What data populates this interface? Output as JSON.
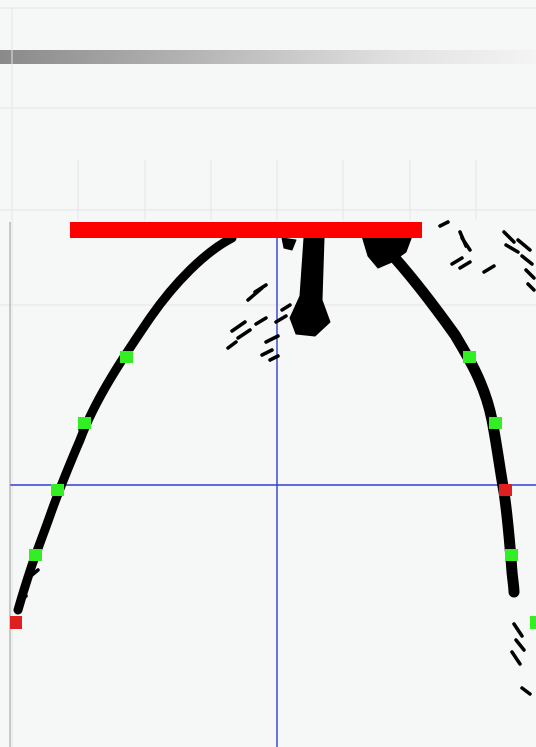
{
  "title": "",
  "colors": {
    "background": "#f6f7f7",
    "gridline": "#e6e6e6",
    "crosshair": "#2f3fd0",
    "edge_pixels": "#000000",
    "plate": "#ff0000",
    "marker_ok": "#33ee22",
    "marker_bad": "#e02020"
  },
  "view": {
    "has_crosshair": true,
    "has_grid": true,
    "has_header_gradient": true
  },
  "markers": {
    "left_curve": [
      "ok",
      "ok",
      "ok",
      "ok",
      "bad"
    ],
    "right_curve": [
      "ok",
      "ok",
      "bad",
      "ok",
      "ok"
    ]
  }
}
